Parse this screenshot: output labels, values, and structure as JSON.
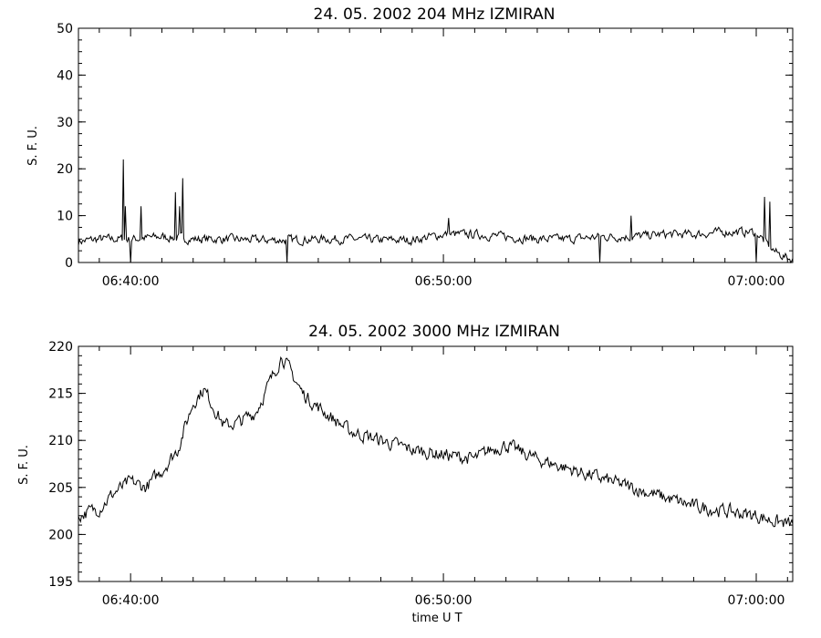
{
  "chart_data": [
    {
      "type": "line",
      "title": "24.  05.  2002    204 MHz    IZMIRAN",
      "ylabel": "S. F. U.",
      "xlabel": "",
      "xlim": [
        "06:38:20",
        "07:01:10"
      ],
      "ylim": [
        0,
        50
      ],
      "xticks": [
        "06:40:00",
        "06:50:00",
        "07:00:00"
      ],
      "yticks": [
        0,
        10,
        20,
        30,
        40,
        50
      ],
      "grid": false,
      "baseline": 5,
      "events": [
        {
          "t": "06:39:45",
          "v": 22
        },
        {
          "t": "06:39:50",
          "v": 12
        },
        {
          "t": "06:40:20",
          "v": 12
        },
        {
          "t": "06:41:25",
          "v": 15
        },
        {
          "t": "06:41:40",
          "v": 18
        },
        {
          "t": "06:41:33",
          "v": 12
        },
        {
          "t": "06:50:10",
          "v": 9.5
        },
        {
          "t": "06:56:00",
          "v": 10
        },
        {
          "t": "07:00:15",
          "v": 14
        },
        {
          "t": "07:00:25",
          "v": 13
        }
      ],
      "dips": [
        {
          "t": "06:40:00",
          "v": 0
        },
        {
          "t": "06:45:00",
          "v": 0
        },
        {
          "t": "06:55:00",
          "v": 0
        },
        {
          "t": "07:00:00",
          "v": 0
        }
      ],
      "series": [
        {
          "x": [
            "06:38:20",
            "06:39:00",
            "06:40:00",
            "06:41:00",
            "06:42:00",
            "06:43:00",
            "06:44:00",
            "06:45:00",
            "06:46:00",
            "06:47:00",
            "06:48:00",
            "06:49:00",
            "06:50:00",
            "06:51:00",
            "06:52:00",
            "06:53:00",
            "06:54:00",
            "06:55:00",
            "06:56:00",
            "06:57:00",
            "06:58:00",
            "06:59:00",
            "07:00:00",
            "07:00:20",
            "07:00:40",
            "07:01:10"
          ],
          "values": [
            4.5,
            5,
            5,
            5.5,
            5,
            5,
            4.8,
            4.8,
            5,
            5,
            4.8,
            4.8,
            6,
            6,
            5.5,
            5,
            5,
            5.5,
            5.5,
            6,
            6,
            6.5,
            6.5,
            4,
            2,
            0.5
          ]
        }
      ]
    },
    {
      "type": "line",
      "title": "24.  05.  2002    3000 MHz    IZMIRAN",
      "ylabel": "S. F. U.",
      "xlabel": "time   U T",
      "xlim": [
        "06:38:20",
        "07:01:10"
      ],
      "ylim": [
        195,
        220
      ],
      "xticks": [
        "06:40:00",
        "06:50:00",
        "07:00:00"
      ],
      "yticks": [
        195,
        200,
        205,
        210,
        215,
        220
      ],
      "grid": false,
      "series": [
        {
          "x": [
            "06:38:20",
            "06:39:00",
            "06:39:30",
            "06:40:00",
            "06:40:30",
            "06:41:00",
            "06:41:30",
            "06:42:00",
            "06:42:20",
            "06:42:40",
            "06:43:00",
            "06:43:30",
            "06:44:00",
            "06:44:30",
            "06:44:50",
            "06:45:10",
            "06:45:30",
            "06:46:00",
            "06:47:00",
            "06:48:00",
            "06:49:00",
            "06:50:00",
            "06:51:00",
            "06:51:30",
            "06:52:00",
            "06:53:00",
            "06:54:00",
            "06:55:00",
            "06:56:00",
            "06:57:00",
            "06:58:00",
            "06:59:00",
            "07:00:00",
            "07:00:30",
            "07:01:10"
          ],
          "values": [
            202,
            202.8,
            204.5,
            205.6,
            205,
            206.8,
            209,
            214,
            215.5,
            213.5,
            211.5,
            212,
            213,
            216.5,
            219,
            217,
            215,
            213.5,
            211,
            210,
            209,
            208.5,
            208,
            209,
            209.5,
            208,
            207,
            206,
            205,
            204,
            203,
            202.5,
            202,
            201.5,
            201
          ]
        }
      ]
    }
  ]
}
